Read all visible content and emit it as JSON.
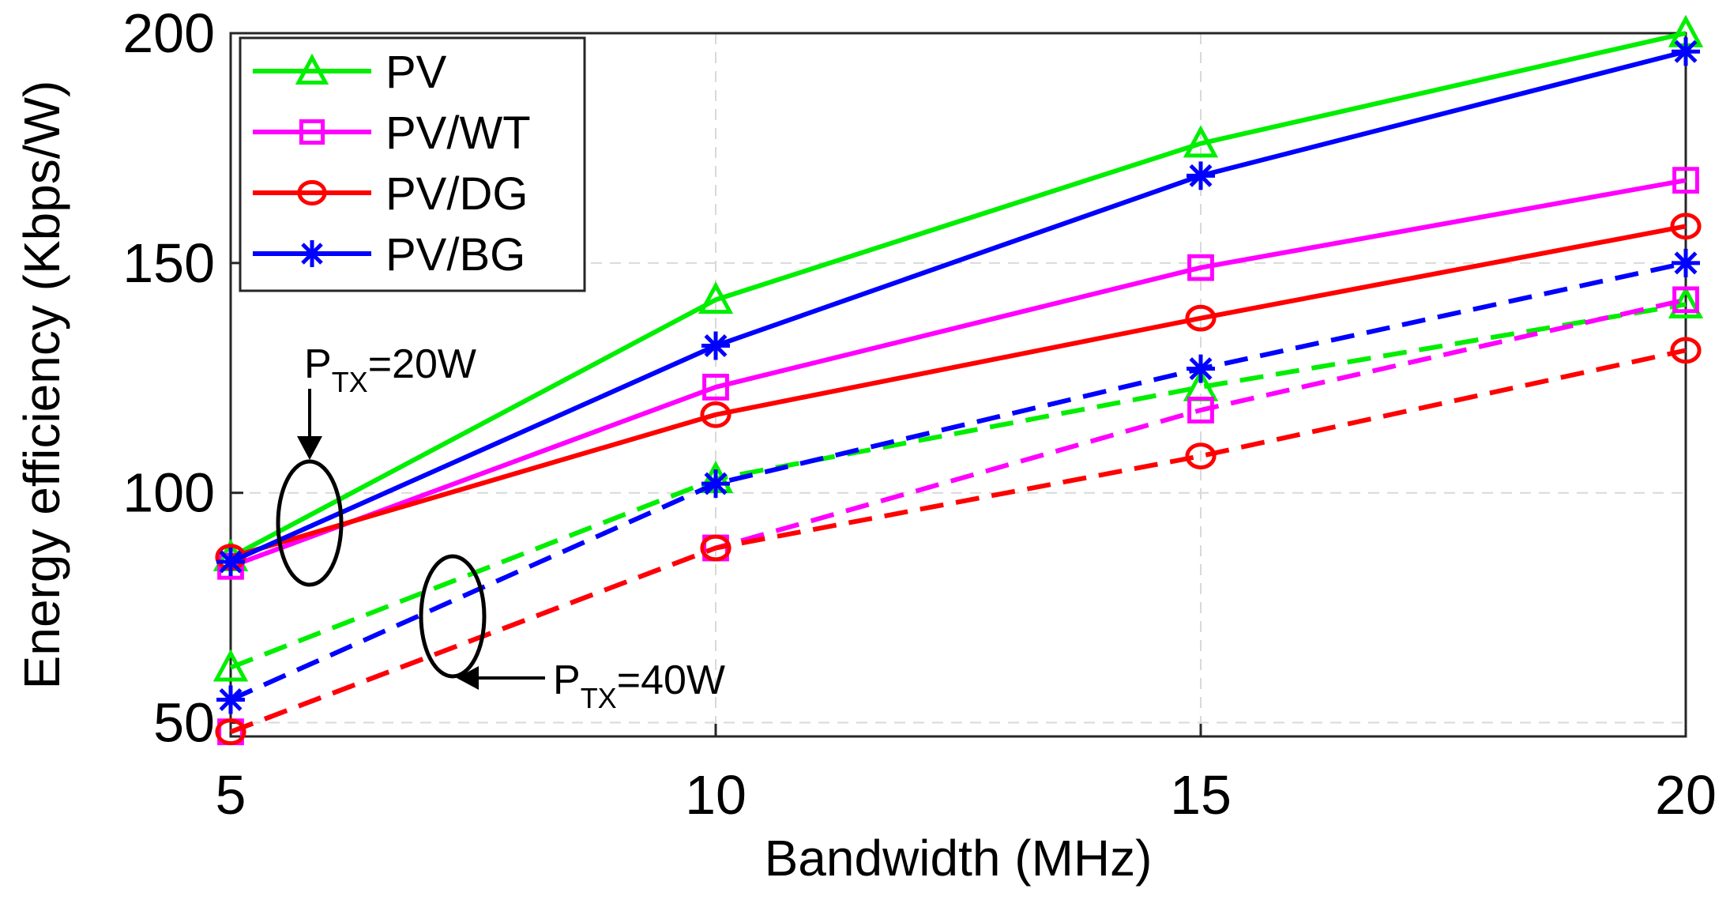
{
  "chart_data": {
    "type": "line",
    "title": "",
    "xlabel": "Bandwidth (MHz)",
    "ylabel": "Energy efficiency (Kbps/W)",
    "x": [
      5,
      10,
      15,
      20
    ],
    "xlim": [
      5,
      20
    ],
    "ylim": [
      47,
      200
    ],
    "xticks": [
      "5",
      "10",
      "15",
      "20"
    ],
    "yticks": [
      "50",
      "100",
      "150",
      "200"
    ],
    "ytick_values": [
      50,
      100,
      150,
      200
    ],
    "grid": true,
    "legend_position": "top-left",
    "series": [
      {
        "name": "PV",
        "condition": "P_TX=20W",
        "color": "#00ee00",
        "marker": "triangle",
        "linestyle": "solid",
        "values": [
          86,
          142,
          176,
          200
        ]
      },
      {
        "name": "PV/WT",
        "condition": "P_TX=20W",
        "color": "#ff00ff",
        "marker": "square",
        "linestyle": "solid",
        "values": [
          84,
          123,
          149,
          168
        ]
      },
      {
        "name": "PV/DG",
        "condition": "P_TX=20W",
        "color": "#ff0000",
        "marker": "circle",
        "linestyle": "solid",
        "values": [
          86,
          117,
          138,
          158
        ]
      },
      {
        "name": "PV/BG",
        "condition": "P_TX=20W",
        "color": "#0000ff",
        "marker": "star",
        "linestyle": "solid",
        "values": [
          85,
          132,
          169,
          196
        ]
      },
      {
        "name": "PV",
        "condition": "P_TX=40W",
        "color": "#00ee00",
        "marker": "triangle",
        "linestyle": "dashed",
        "values": [
          62,
          103,
          123,
          141
        ]
      },
      {
        "name": "PV/WT",
        "condition": "P_TX=40W",
        "color": "#ff00ff",
        "marker": "square",
        "linestyle": "dashed",
        "values": [
          48,
          88,
          118,
          142
        ]
      },
      {
        "name": "PV/DG",
        "condition": "P_TX=40W",
        "color": "#ff0000",
        "marker": "circle",
        "linestyle": "dashed",
        "values": [
          48,
          88,
          108,
          131
        ]
      },
      {
        "name": "PV/BG",
        "condition": "P_TX=40W",
        "color": "#0000ff",
        "marker": "star",
        "linestyle": "dashed",
        "values": [
          55,
          102,
          127,
          150
        ]
      }
    ],
    "legend": [
      {
        "label": "PV",
        "color": "#00ee00",
        "marker": "triangle"
      },
      {
        "label": "PV/WT",
        "color": "#ff00ff",
        "marker": "square"
      },
      {
        "label": "PV/DG",
        "color": "#ff0000",
        "marker": "circle"
      },
      {
        "label": "PV/BG",
        "color": "#0000ff",
        "marker": "star"
      }
    ],
    "annotations": [
      {
        "prefix": "P",
        "subscript": "TX",
        "suffix": "=20W"
      },
      {
        "prefix": "P",
        "subscript": "TX",
        "suffix": "=40W"
      }
    ]
  }
}
